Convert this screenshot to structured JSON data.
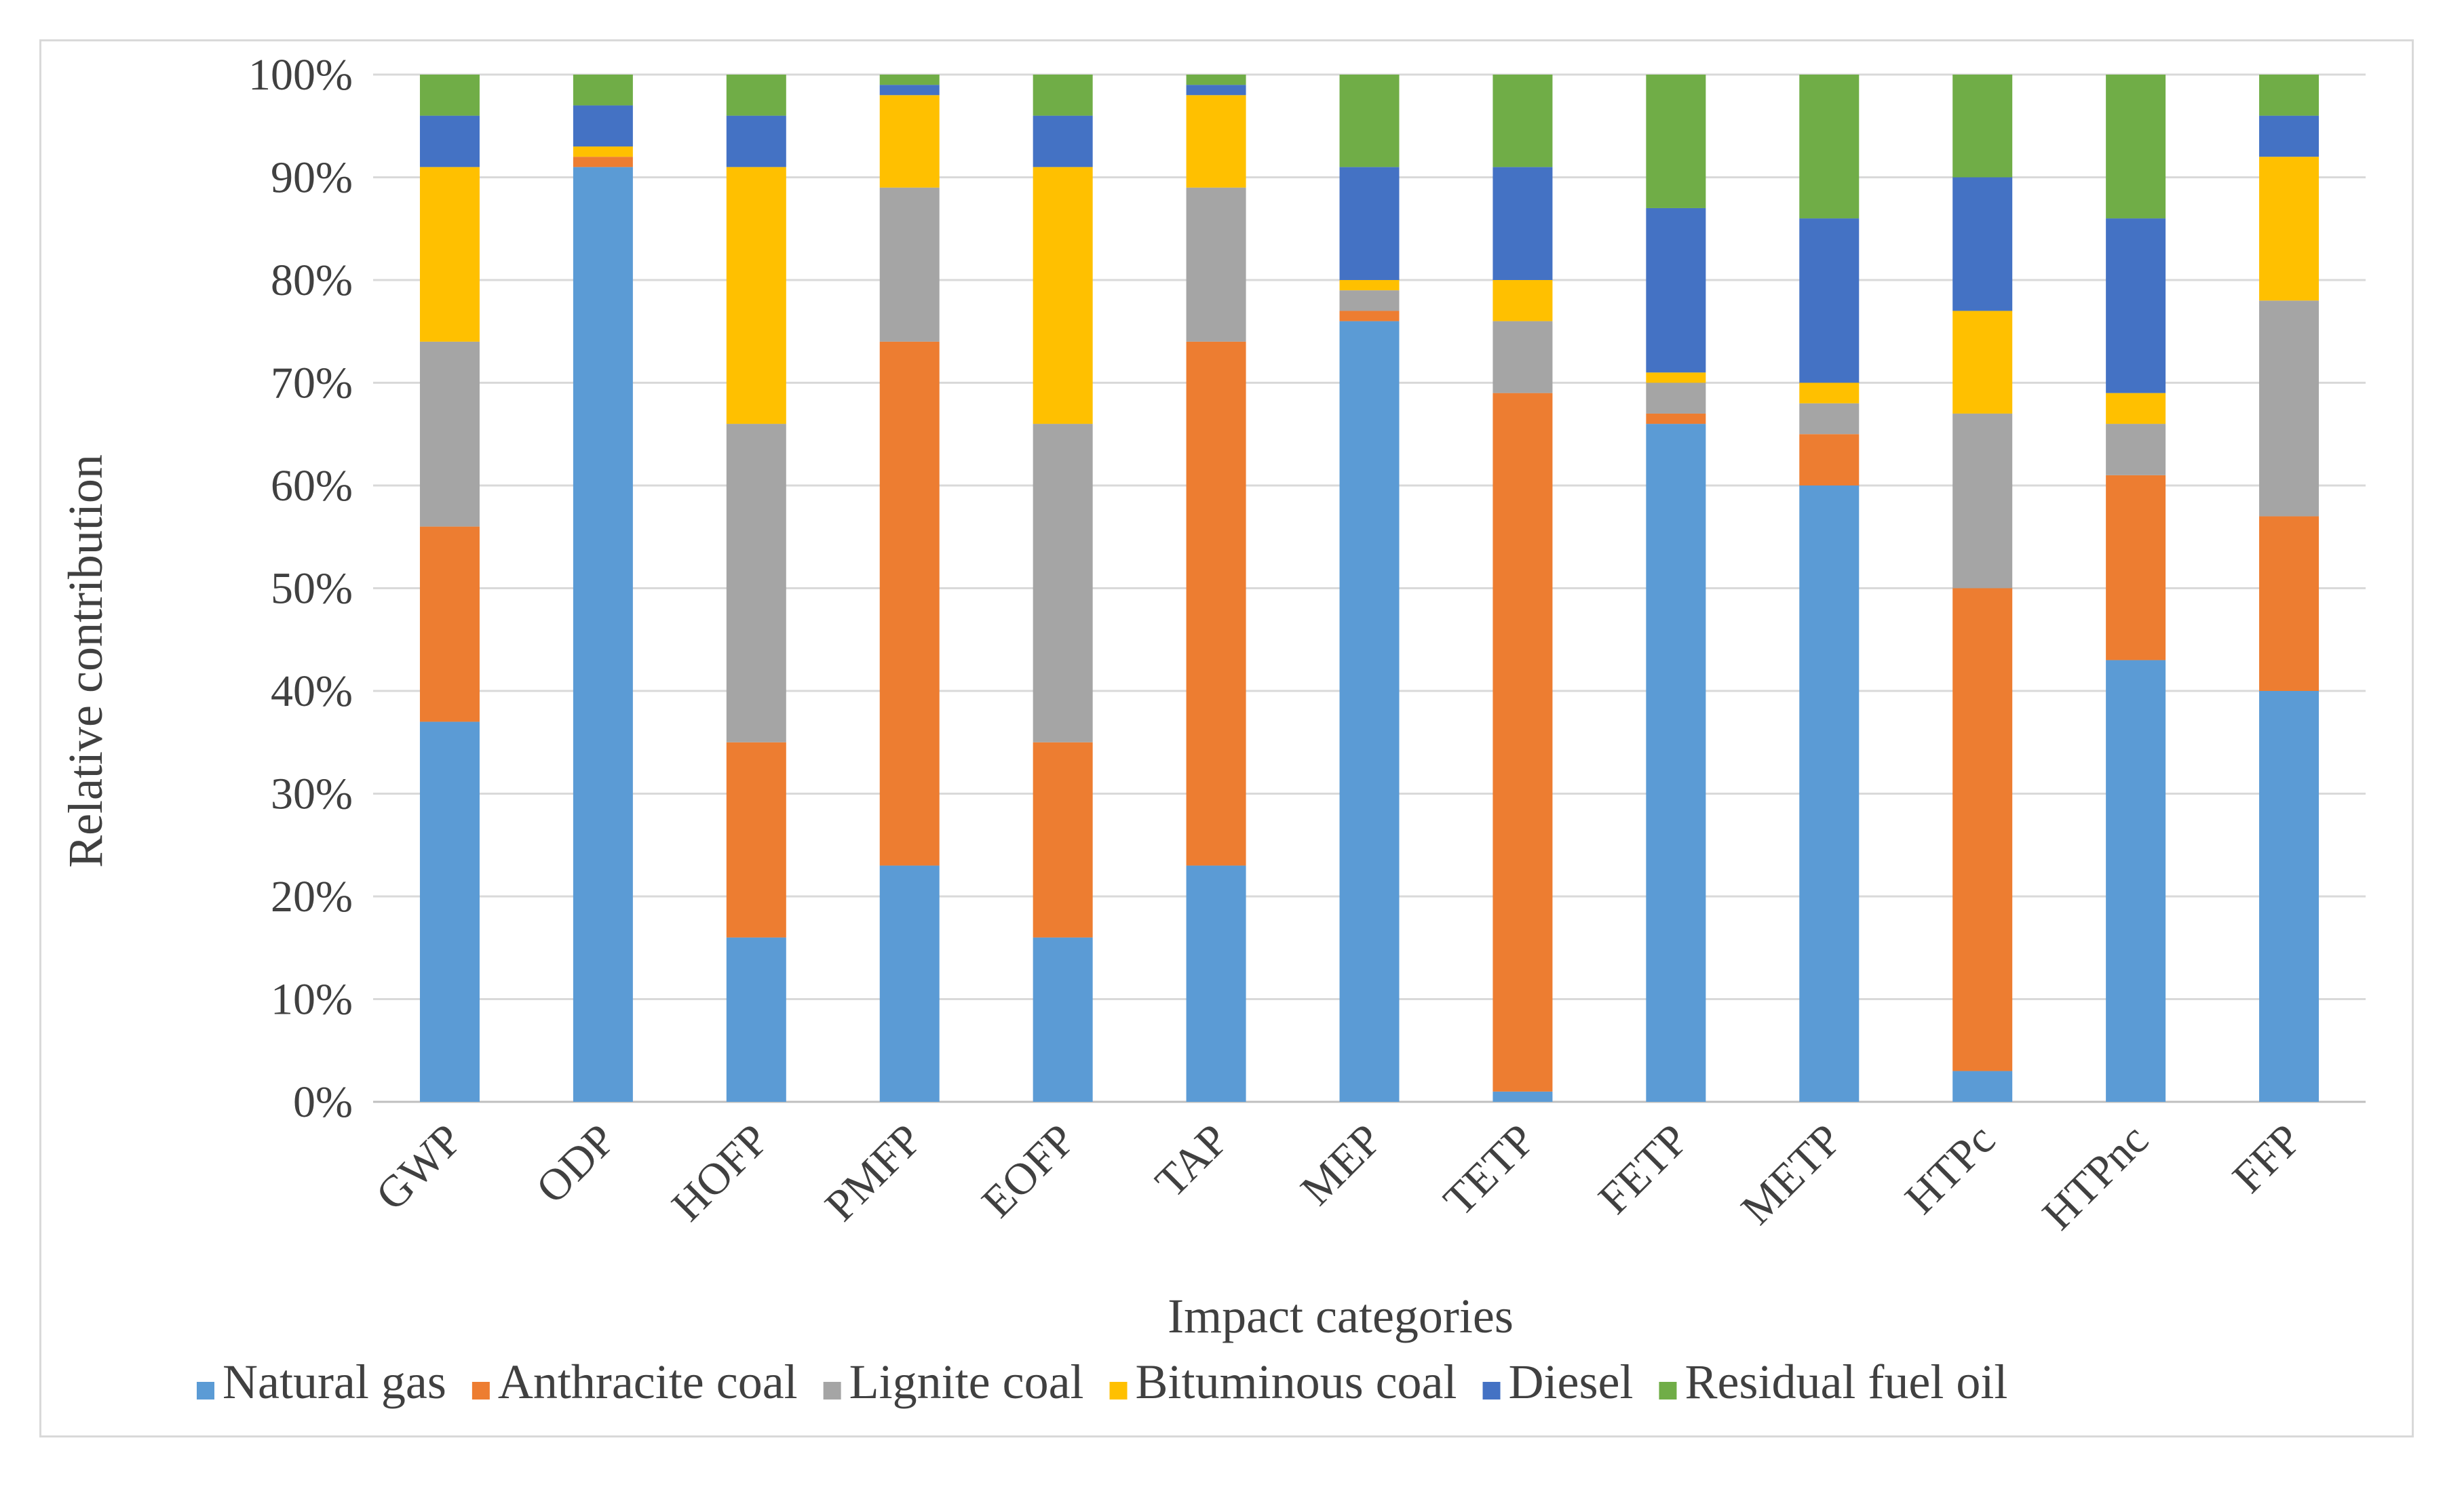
{
  "chart_data": {
    "type": "bar",
    "stacked": true,
    "ylabel": "Relative contribution",
    "xlabel": "Impact categories",
    "ylim": [
      0,
      100
    ],
    "y_ticks": [
      "0%",
      "10%",
      "20%",
      "30%",
      "40%",
      "50%",
      "60%",
      "70%",
      "80%",
      "90%",
      "100%"
    ],
    "categories": [
      "GWP",
      "ODP",
      "HOFP",
      "PMFP",
      "EOFP",
      "TAP",
      "MEP",
      "TETP",
      "FETP",
      "METP",
      "HTPc",
      "HTPnc",
      "FFP"
    ],
    "legend_position": "bottom",
    "series": [
      {
        "name": "Natural gas",
        "color": "#5b9bd5",
        "values": [
          37,
          91,
          16,
          23,
          16,
          23,
          76,
          1,
          66,
          60,
          3,
          43,
          40
        ]
      },
      {
        "name": "Anthracite coal",
        "color": "#ed7d31",
        "values": [
          19,
          1,
          19,
          51,
          19,
          51,
          1,
          68,
          1,
          5,
          47,
          18,
          17
        ]
      },
      {
        "name": "Lignite coal",
        "color": "#a5a5a5",
        "values": [
          18,
          0,
          31,
          15,
          31,
          15,
          2,
          7,
          3,
          3,
          17,
          5,
          21
        ]
      },
      {
        "name": "Bituminous coal",
        "color": "#ffc000",
        "values": [
          17,
          1,
          25,
          9,
          25,
          9,
          1,
          4,
          1,
          2,
          10,
          3,
          14
        ]
      },
      {
        "name": "Diesel",
        "color": "#4472c4",
        "values": [
          5,
          4,
          5,
          1,
          5,
          1,
          11,
          11,
          16,
          16,
          13,
          17,
          4
        ]
      },
      {
        "name": "Residual fuel oil",
        "color": "#70ad47",
        "values": [
          4,
          3,
          4,
          1,
          4,
          1,
          9,
          9,
          13,
          14,
          10,
          14,
          4
        ]
      }
    ]
  }
}
